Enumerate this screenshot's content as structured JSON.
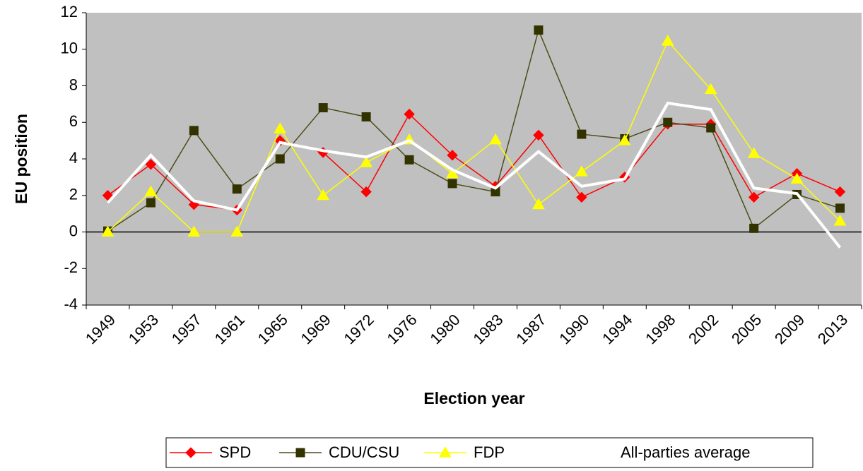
{
  "chart_data": {
    "type": "line",
    "x_label": "Election year",
    "y_label": "EU position",
    "categories": [
      "1949",
      "1953",
      "1957",
      "1961",
      "1965",
      "1969",
      "1972",
      "1976",
      "1980",
      "1983",
      "1987",
      "1990",
      "1994",
      "1998",
      "2002",
      "2005",
      "2009",
      "2013"
    ],
    "series": [
      {
        "name": "SPD",
        "color": "#ff0000",
        "marker": "diamond",
        "values": [
          2.0,
          3.7,
          1.5,
          1.2,
          5.0,
          4.35,
          2.2,
          6.45,
          4.2,
          2.5,
          5.3,
          1.9,
          3.0,
          5.9,
          5.9,
          1.9,
          3.2,
          2.2
        ]
      },
      {
        "name": "CDU/CSU",
        "color": "#4d4d1a",
        "marker_color": "#333300",
        "marker": "square",
        "values": [
          0.05,
          1.6,
          5.55,
          2.35,
          4.0,
          6.8,
          6.3,
          3.95,
          2.65,
          2.2,
          11.05,
          5.35,
          5.1,
          6.0,
          5.7,
          0.2,
          2.05,
          1.3
        ]
      },
      {
        "name": "FDP",
        "color": "#ffff00",
        "marker": "triangle",
        "values": [
          0.0,
          2.2,
          0.0,
          0.0,
          5.65,
          2.0,
          3.8,
          5.05,
          3.2,
          5.05,
          1.5,
          3.3,
          5.0,
          10.45,
          7.8,
          4.3,
          2.9,
          0.6
        ]
      },
      {
        "name": "All-parties average",
        "color": "#ffffff",
        "marker": "none",
        "line_width": 4,
        "values": [
          1.6,
          4.2,
          1.7,
          1.2,
          4.9,
          4.45,
          4.1,
          5.0,
          3.4,
          2.4,
          4.4,
          2.5,
          2.9,
          7.05,
          6.7,
          2.4,
          2.1,
          -0.85
        ]
      }
    ],
    "ylim": [
      -4,
      12
    ],
    "yticks": [
      -4,
      -2,
      0,
      2,
      4,
      6,
      8,
      10,
      12
    ],
    "plot_background": "#c0c0c0",
    "legend": "bottom"
  }
}
